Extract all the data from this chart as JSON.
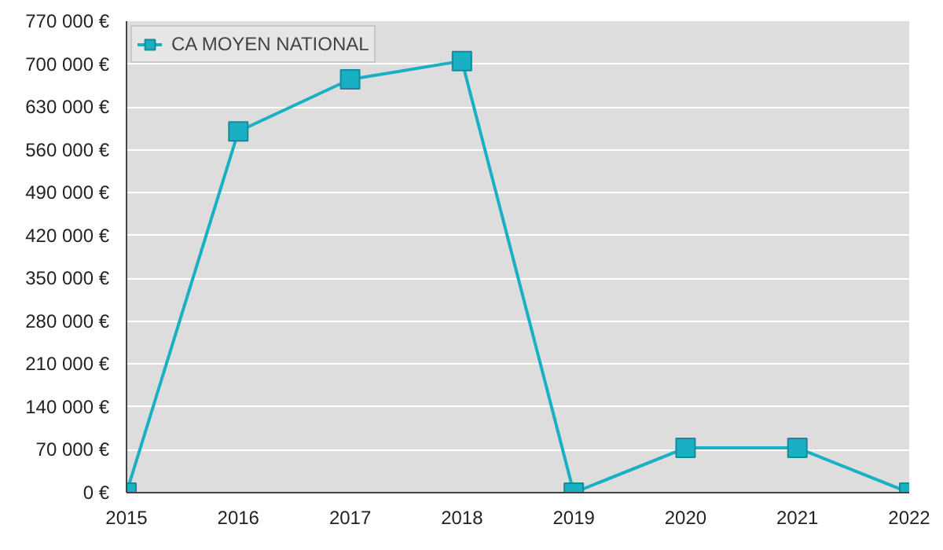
{
  "chart_data": {
    "type": "line",
    "x": [
      2015,
      2016,
      2017,
      2018,
      2019,
      2020,
      2021,
      2022
    ],
    "series": [
      {
        "name": "CA MOYEN NATIONAL",
        "color": "#1ab0c4",
        "values": [
          0,
          590000,
          675000,
          705000,
          0,
          73000,
          73000,
          0
        ]
      }
    ],
    "xlim": [
      2015,
      2022
    ],
    "xticks": [
      2015,
      2016,
      2017,
      2018,
      2019,
      2020,
      2021,
      2022
    ],
    "ylim": [
      0,
      770000
    ],
    "yticks": [
      {
        "value": 0,
        "label": "0 €"
      },
      {
        "value": 70000,
        "label": "70 000 €"
      },
      {
        "value": 140000,
        "label": "140 000 €"
      },
      {
        "value": 210000,
        "label": "210 000 €"
      },
      {
        "value": 280000,
        "label": "280 000 €"
      },
      {
        "value": 350000,
        "label": "350 000 €"
      },
      {
        "value": 420000,
        "label": "420 000 €"
      },
      {
        "value": 490000,
        "label": "490 000 €"
      },
      {
        "value": 560000,
        "label": "560 000 €"
      },
      {
        "value": 630000,
        "label": "630 000 €"
      },
      {
        "value": 700000,
        "label": "700 000 €"
      },
      {
        "value": 770000,
        "label": "770 000 €"
      }
    ],
    "grid": "y",
    "legend": "top left",
    "marker": "square",
    "line_style": "solid"
  }
}
